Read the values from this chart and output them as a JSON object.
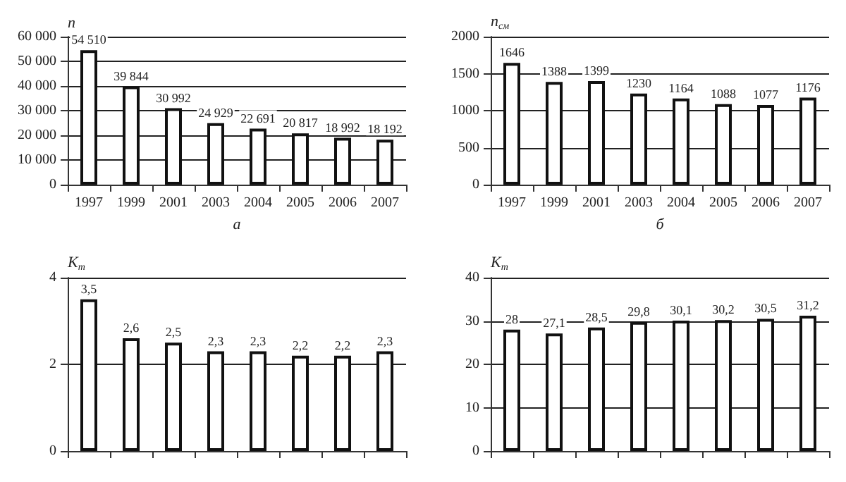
{
  "chart_data": [
    {
      "type": "bar",
      "xlabel": "а",
      "ylabel": "n",
      "categories": [
        "1997",
        "1999",
        "2001",
        "2003",
        "2004",
        "2005",
        "2006",
        "2007"
      ],
      "values": [
        54510,
        39844,
        30992,
        24929,
        22691,
        20817,
        18992,
        18192
      ],
      "value_labels": [
        "54 510",
        "39 844",
        "30 992",
        "24 929",
        "22 691",
        "20 817",
        "18 992",
        "18 192"
      ],
      "color": "#ffffff",
      "ylim": [
        0,
        60000
      ],
      "yticks": [
        0,
        {
          "value": 10000,
          "label": "10 000"
        },
        {
          "value": 20000,
          "label": "20 000"
        },
        {
          "value": 30000,
          "label": "30 000"
        },
        {
          "value": 40000,
          "label": "40 000"
        },
        {
          "value": 50000,
          "label": "50 000"
        },
        {
          "value": 60000,
          "label": "60 000"
        }
      ],
      "grid": "y"
    },
    {
      "type": "bar",
      "xlabel": "б",
      "ylabel": "n$_{см}$",
      "categories": [
        "1997",
        "1999",
        "2001",
        "2003",
        "2004",
        "2005",
        "2006",
        "2007"
      ],
      "values": [
        1646,
        1388,
        1399,
        1230,
        1164,
        1088,
        1077,
        1176
      ],
      "color": "#ffffff",
      "ylim": [
        0,
        2000
      ],
      "yticks": [
        0,
        500,
        1000,
        1500,
        2000
      ],
      "grid": "y",
      "data_labels": true
    },
    {
      "type": "bar",
      "ylabel": "K$_{т}$",
      "categories": [
        null,
        null,
        null,
        null,
        null,
        null,
        null,
        null
      ],
      "values": [
        3.5,
        2.6,
        2.5,
        2.3,
        2.3,
        2.2,
        2.2,
        2.3
      ],
      "value_labels": [
        "3,5",
        "2,6",
        "2,5",
        "2,3",
        "2,3",
        "2,2",
        "2,2",
        "2,3"
      ],
      "color": "#ffffff",
      "ylim": [
        0,
        4
      ],
      "yticks": [
        0,
        2,
        4
      ],
      "grid": "y"
    },
    {
      "type": "bar",
      "ylabel": "K$_{т}$",
      "categories": [
        null,
        null,
        null,
        null,
        null,
        null,
        null,
        null
      ],
      "values": [
        28,
        27.1,
        28.5,
        29.8,
        30.1,
        30.2,
        30.5,
        31.2
      ],
      "value_labels": [
        "28",
        "27,1",
        "28,5",
        "29,8",
        "30,1",
        "30,2",
        "30,5",
        "31,2"
      ],
      "color": "#ffffff",
      "ylim": [
        0,
        40
      ],
      "yticks": [
        0,
        10,
        20,
        30,
        40
      ],
      "grid": "y"
    }
  ]
}
